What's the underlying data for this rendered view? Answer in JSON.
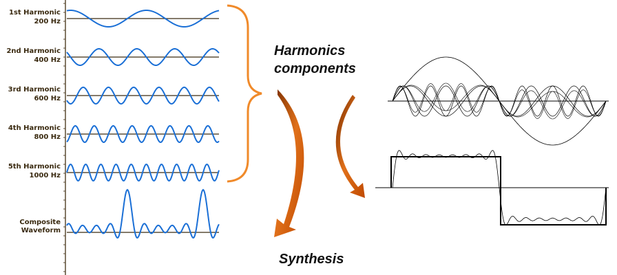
{
  "harmonics": [
    {
      "name": "1st Harmonic",
      "frequency": "200 Hz"
    },
    {
      "name": "2nd Harmonic",
      "frequency": "400 Hz"
    },
    {
      "name": "3rd Harmonic",
      "frequency": "600 Hz"
    },
    {
      "name": "4th Harmonic",
      "frequency": "800 Hz"
    },
    {
      "name": "5th Harmonic",
      "frequency": "1000 Hz"
    }
  ],
  "composite": [
    "Composite",
    "Waveform"
  ],
  "labels": {
    "components": [
      "Harmonics",
      "components"
    ],
    "synthesis": "Synthesis"
  }
}
